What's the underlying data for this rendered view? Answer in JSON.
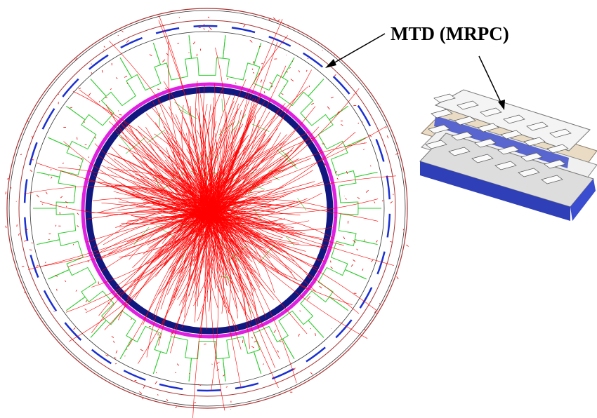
{
  "label": "MTD (MRPC)"
}
